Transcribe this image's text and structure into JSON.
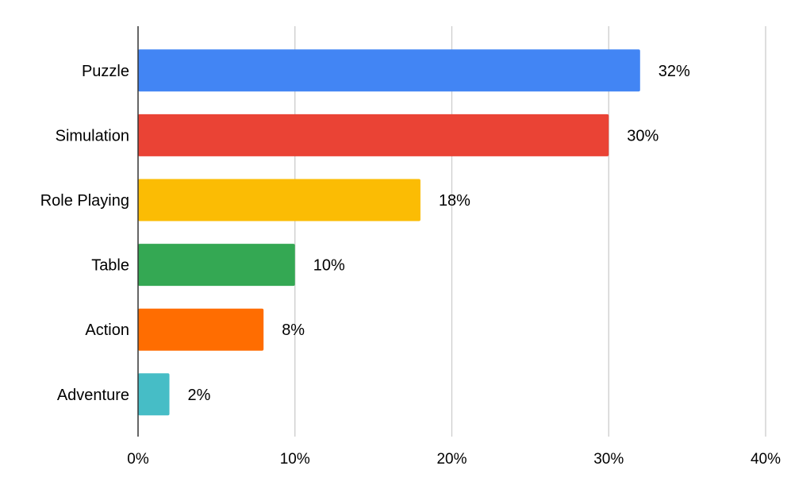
{
  "chart_data": {
    "type": "bar",
    "orientation": "horizontal",
    "categories": [
      "Puzzle",
      "Simulation",
      "Role Playing",
      "Table",
      "Action",
      "Adventure"
    ],
    "values": [
      32,
      30,
      18,
      10,
      8,
      2
    ],
    "data_labels": [
      "32%",
      "30%",
      "18%",
      "10%",
      "8%",
      "2%"
    ],
    "colors": [
      "#4285F4",
      "#EA4335",
      "#FBBC04",
      "#34A853",
      "#FF6D01",
      "#46BDC6"
    ],
    "xlim": [
      0,
      40
    ],
    "x_ticks": [
      0,
      10,
      20,
      30,
      40
    ],
    "x_tick_labels": [
      "0%",
      "10%",
      "20%",
      "30%",
      "40%"
    ],
    "grid": "vertical",
    "legend": "none",
    "title": "",
    "xlabel": "",
    "ylabel": ""
  }
}
